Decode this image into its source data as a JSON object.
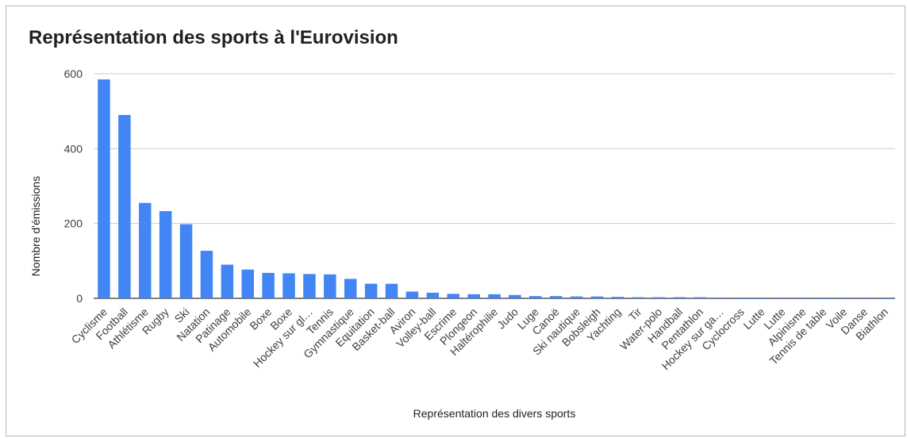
{
  "colors": {
    "bar": "#4285f4",
    "grid": "#cccccc",
    "baseline": "#333333"
  },
  "chart_data": {
    "type": "bar",
    "title": "Représentation des sports à l'Eurovision",
    "xlabel": "Représentation des divers sports",
    "ylabel": "Nombre d'émissions",
    "ylim": [
      0,
      600
    ],
    "yticks": [
      0,
      200,
      400,
      600
    ],
    "grid": true,
    "legend": "none",
    "categories": [
      "Cyclisme",
      "Football",
      "Athlétisme",
      "Rugby",
      "Ski",
      "Natation",
      "Patinage",
      "Automobile",
      "Boxe",
      "Boxe",
      "Hockey sur gl…",
      "Tennis",
      "Gymnastique",
      "Equitation",
      "Basket-ball",
      "Aviron",
      "Volley-ball",
      "Escrime",
      "Plongeon",
      "Haltérophilie",
      "Judo",
      "Luge",
      "Canoë",
      "Ski nautique",
      "Bobsleigh",
      "Yachting",
      "Tir",
      "Water-polo",
      "Handball",
      "Pentathlon",
      "Hockey sur ga…",
      "Cyclocross",
      "Lutte",
      "Lutte",
      "Alpinisme",
      "Tennis de table",
      "Voile",
      "Danse",
      "Biathlon"
    ],
    "values": [
      585,
      490,
      255,
      233,
      198,
      127,
      90,
      77,
      68,
      67,
      65,
      64,
      52,
      39,
      39,
      18,
      15,
      12,
      11,
      11,
      9,
      6,
      6,
      5,
      5,
      4,
      3,
      3,
      3,
      3,
      1,
      1,
      1,
      1,
      1,
      1,
      1,
      1,
      1
    ]
  }
}
